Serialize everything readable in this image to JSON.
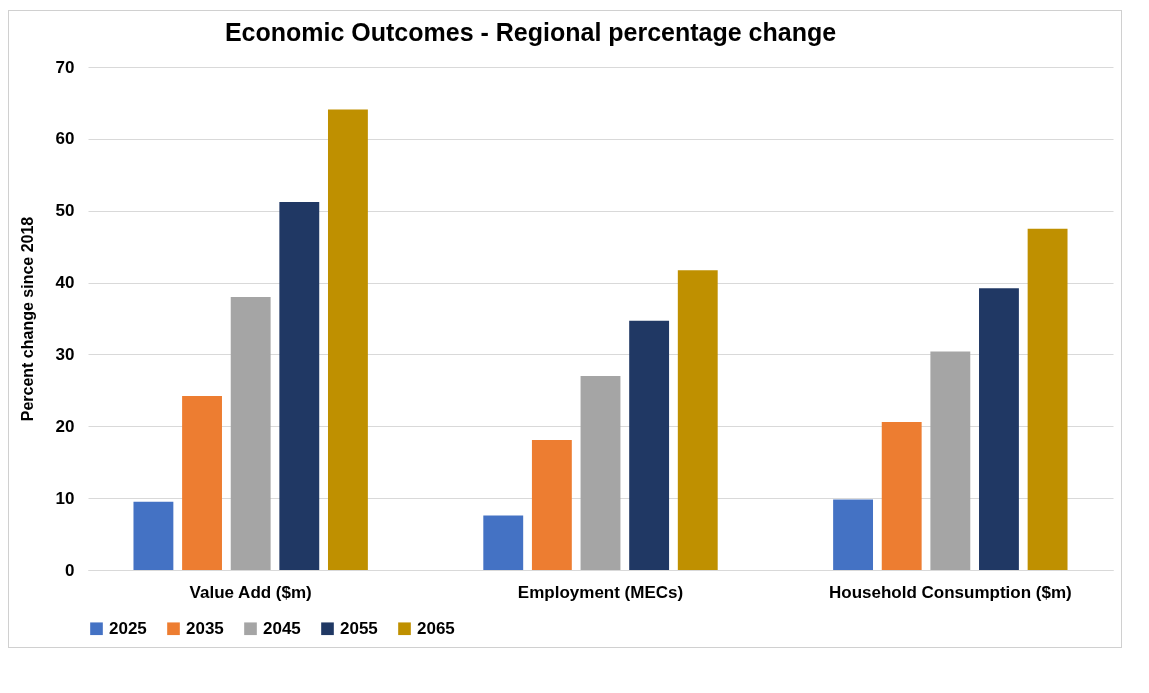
{
  "chart_data": {
    "type": "bar",
    "title": "Economic Outcomes - Regional percentage change",
    "ylabel": "Percent change since 2018",
    "categories": [
      "Value Add ($m)",
      "Employment (MECs)",
      "Household Consumption ($m)"
    ],
    "series": [
      {
        "name": "2025",
        "color": "#4472c4",
        "values": [
          9.5,
          7.6,
          9.8
        ]
      },
      {
        "name": "2035",
        "color": "#ed7d31",
        "values": [
          24.2,
          18.1,
          20.6
        ]
      },
      {
        "name": "2045",
        "color": "#a5a5a5",
        "values": [
          38.0,
          27.0,
          30.4
        ]
      },
      {
        "name": "2055",
        "color": "#203864",
        "values": [
          51.2,
          34.7,
          39.2
        ]
      },
      {
        "name": "2065",
        "color": "#bf9000",
        "values": [
          64.1,
          41.7,
          47.5
        ]
      }
    ],
    "ylim": [
      0,
      70
    ],
    "yticks": [
      0,
      10,
      20,
      30,
      40,
      50,
      60,
      70
    ],
    "grid": "y",
    "legend": "bottom"
  }
}
